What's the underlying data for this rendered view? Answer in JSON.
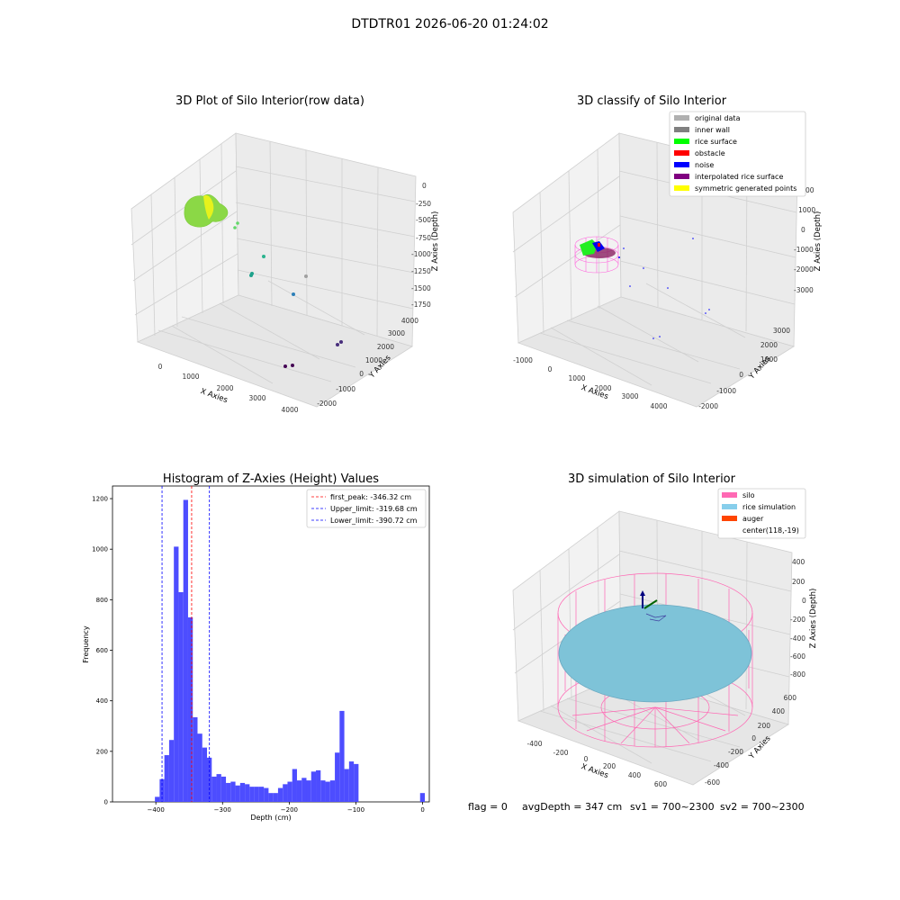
{
  "suptitle": "DTDTR01 2026-06-20 01:24:02",
  "panels": {
    "raw": {
      "title": "3D Plot of Silo Interior(row data)",
      "xlabel": "X Axies",
      "ylabel": "Y Axies",
      "zlabel": "Z Axies (Depth)",
      "xticks": [
        "0",
        "1000",
        "2000",
        "3000",
        "4000"
      ],
      "yticks": [
        "-2000",
        "-1000",
        "0",
        "1000",
        "2000",
        "3000",
        "4000"
      ],
      "zticks": [
        "0",
        "-250",
        "-500",
        "-750",
        "-1000",
        "-1250",
        "-1500",
        "-1750"
      ]
    },
    "classify": {
      "title": "3D classify of Silo Interior",
      "xlabel": "X Axies",
      "ylabel": "Y Axies",
      "zlabel": "Z Axies (Depth)",
      "xticks": [
        "-1000",
        "0",
        "1000",
        "2000",
        "3000",
        "4000"
      ],
      "yticks": [
        "-2000",
        "-1000",
        "0",
        "1000",
        "2000",
        "3000"
      ],
      "zticks": [
        "1000",
        "0",
        "-1000",
        "-2000",
        "-3000"
      ],
      "ztick_partial": "00",
      "legend": [
        {
          "label": "original data",
          "color": "#b0b0b0"
        },
        {
          "label": "inner wall",
          "color": "#808080"
        },
        {
          "label": "rice surface",
          "color": "#00ff00"
        },
        {
          "label": "obstacle",
          "color": "#ff0000"
        },
        {
          "label": "noise",
          "color": "#0000ff"
        },
        {
          "label": "interpolated rice surface",
          "color": "#800080"
        },
        {
          "label": "symmetric generated points",
          "color": "#ffff00"
        }
      ]
    },
    "simulation": {
      "title": "3D simulation of Silo Interior",
      "xlabel": "X Axies",
      "ylabel": "Y Axies",
      "zlabel": "Z Axies (Depth)",
      "xticks": [
        "-400",
        "-200",
        "0",
        "200",
        "400",
        "600"
      ],
      "yticks": [
        "-600",
        "-400",
        "-200",
        "0",
        "200",
        "400",
        "600"
      ],
      "zticks": [
        "400",
        "200",
        "0",
        "-200",
        "-400",
        "-600",
        "-800"
      ],
      "legend": [
        {
          "label": "silo",
          "color": "#ff69b4"
        },
        {
          "label": "rice simulation",
          "color": "#87ceeb"
        },
        {
          "label": "auger",
          "color": "#ff4500"
        },
        {
          "label": "center(118,-19)",
          "color": null
        }
      ]
    }
  },
  "status": {
    "flag": "flag = 0",
    "avg_depth": "avgDepth = 347 cm",
    "sv1": "sv1 = 700~2300",
    "sv2": "sv2 = 700~2300"
  },
  "chart_data": {
    "type": "histogram",
    "title": "Histogram of Z-Axies (Height) Values",
    "xlabel": "Depth (cm)",
    "ylabel": "Frequency",
    "xlim": [
      -465,
      10
    ],
    "ylim": [
      0,
      1250
    ],
    "xticks": [
      -400,
      -300,
      -200,
      -100,
      0
    ],
    "yticks": [
      0,
      200,
      400,
      600,
      800,
      1000,
      1200
    ],
    "bin_width": 7.1,
    "bin_starts": [
      -408.5,
      -401.4,
      -394.3,
      -387.2,
      -380.1,
      -373.0,
      -365.9,
      -358.8,
      -351.7,
      -344.6,
      -337.5,
      -330.4,
      -323.3,
      -316.2,
      -309.1,
      -302.0,
      -294.9,
      -287.8,
      -280.7,
      -273.6,
      -266.5,
      -259.4,
      -252.3,
      -245.2,
      -238.1,
      -231.0,
      -223.9,
      -216.8,
      -209.7,
      -202.6,
      -195.5,
      -188.4,
      -181.3,
      -174.2,
      -167.1,
      -160.0,
      -152.9,
      -145.8,
      -138.7,
      -131.6,
      -124.5,
      -117.4,
      -110.3,
      -103.2,
      -96.1,
      -89.0,
      -81.9,
      -74.8,
      -67.7,
      -60.6,
      -53.5,
      -46.4,
      -39.3,
      -32.2,
      -25.1,
      -18.0,
      -10.9,
      -3.8
    ],
    "counts": [
      0,
      20,
      90,
      185,
      245,
      1010,
      830,
      1195,
      730,
      335,
      270,
      215,
      175,
      100,
      110,
      100,
      75,
      80,
      65,
      75,
      70,
      60,
      60,
      60,
      55,
      35,
      35,
      55,
      70,
      80,
      130,
      85,
      95,
      85,
      120,
      125,
      85,
      80,
      85,
      195,
      360,
      130,
      160,
      150,
      0,
      0,
      0,
      0,
      0,
      0,
      0,
      0,
      0,
      0,
      0,
      0,
      0,
      35
    ],
    "lines": [
      {
        "name": "first_peak: -346.32 cm",
        "x": -346.32,
        "color": "#ff0000"
      },
      {
        "name": "Upper_limit: -319.68 cm",
        "x": -319.68,
        "color": "#0000ff"
      },
      {
        "name": "Lower_limit: -390.72 cm",
        "x": -390.72,
        "color": "#0000ff"
      }
    ],
    "bar_color": "#4d4dff"
  }
}
